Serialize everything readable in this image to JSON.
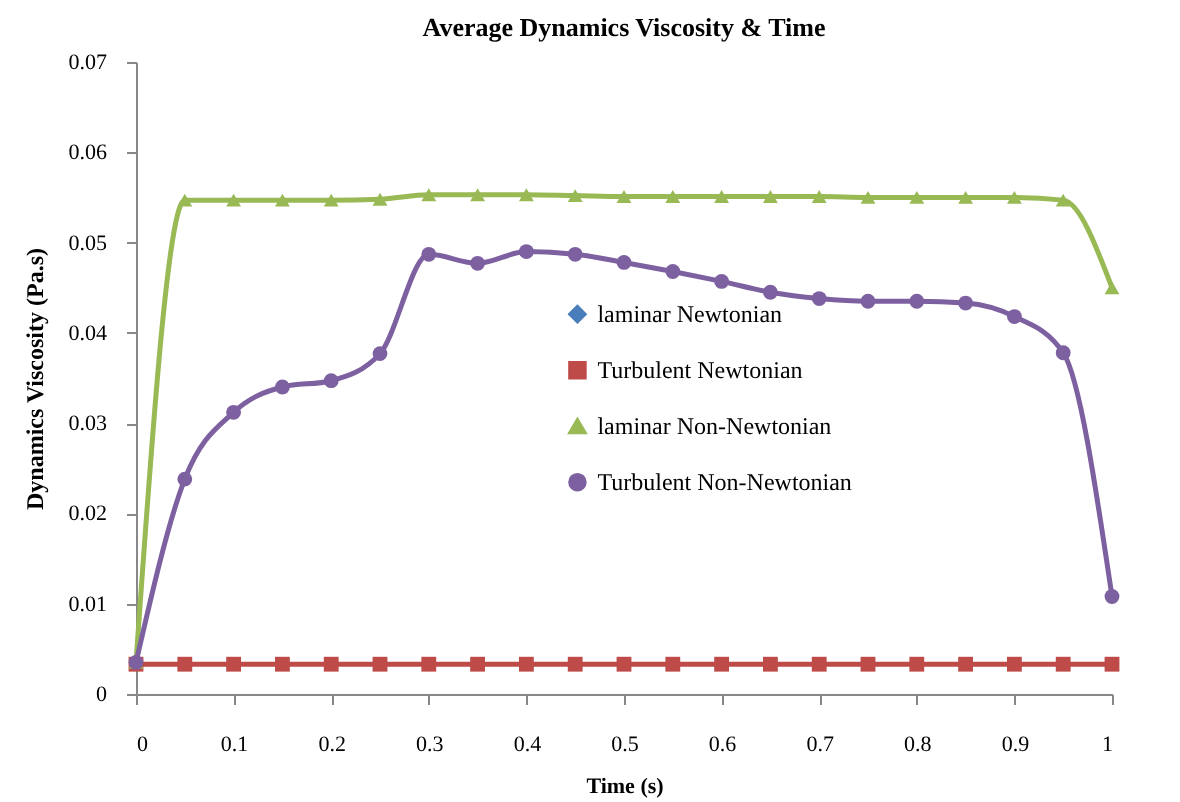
{
  "chart_data": {
    "type": "line",
    "title": "Average Dynamics Viscosity & Time",
    "xlabel": "Time (s)",
    "ylabel": "Dynamics Viscosity (Pa.s)",
    "x": [
      0,
      0.05,
      0.1,
      0.15,
      0.2,
      0.25,
      0.3,
      0.35,
      0.4,
      0.45,
      0.5,
      0.55,
      0.6,
      0.65,
      0.7,
      0.75,
      0.8,
      0.85,
      0.9,
      0.95,
      1
    ],
    "series": [
      {
        "name": "laminar Newtonian",
        "color": "#4a7ebb",
        "marker": "diamond",
        "values": [
          null,
          null,
          null,
          null,
          null,
          null,
          null,
          null,
          null,
          null,
          null,
          null,
          null,
          null,
          null,
          null,
          null,
          null,
          null,
          null,
          null
        ]
      },
      {
        "name": "Turbulent Newtonian",
        "color": "#be4b48",
        "marker": "square",
        "values": [
          0.0033,
          0.0033,
          0.0033,
          0.0033,
          0.0033,
          0.0033,
          0.0033,
          0.0033,
          0.0033,
          0.0033,
          0.0033,
          0.0033,
          0.0033,
          0.0033,
          0.0033,
          0.0033,
          0.0033,
          0.0033,
          0.0033,
          0.0033,
          0.0033
        ]
      },
      {
        "name": "laminar Non-Newtonian",
        "color": "#98b954",
        "marker": "triangle",
        "values": [
          0.0035,
          0.0547,
          0.0547,
          0.0547,
          0.0547,
          0.0548,
          0.0553,
          0.0553,
          0.0553,
          0.0552,
          0.0551,
          0.0551,
          0.0551,
          0.0551,
          0.0551,
          0.055,
          0.055,
          0.055,
          0.055,
          0.0547,
          0.045
        ]
      },
      {
        "name": "Turbulent Non-Newtonian",
        "color": "#7d60a0",
        "marker": "circle",
        "values": [
          0.0035,
          0.0238,
          0.0312,
          0.034,
          0.0347,
          0.0377,
          0.0487,
          0.0477,
          0.049,
          0.0487,
          0.0478,
          0.0468,
          0.0457,
          0.0445,
          0.0438,
          0.0435,
          0.0435,
          0.0433,
          0.0418,
          0.0378,
          0.0108
        ]
      }
    ],
    "xlim": [
      0,
      1
    ],
    "xticks": [
      0,
      0.1,
      0.2,
      0.3,
      0.4,
      0.5,
      0.6,
      0.7,
      0.8,
      0.9,
      1
    ],
    "ylim": [
      0,
      0.07
    ],
    "yticks": [
      0,
      0.01,
      0.02,
      0.03,
      0.04,
      0.05,
      0.06,
      0.07
    ],
    "grid": false,
    "legend": "right"
  }
}
